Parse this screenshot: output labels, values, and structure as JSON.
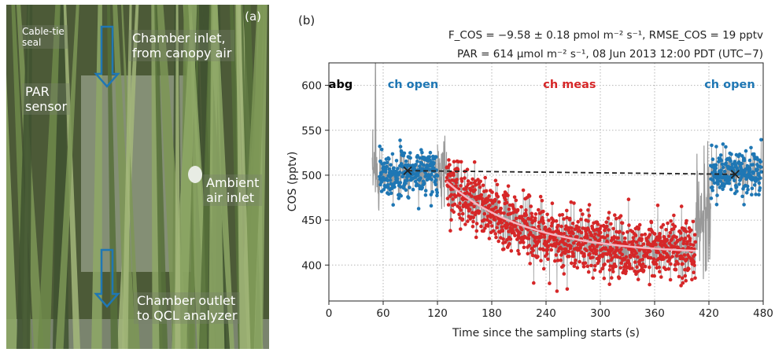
{
  "photo": {
    "panel_label": "(a)",
    "labels": {
      "cable_tie": [
        "Cable-tie",
        "seal"
      ],
      "inlet": [
        "Chamber inlet,",
        "from canopy air"
      ],
      "par": [
        "PAR",
        "sensor"
      ],
      "ambient": [
        "Ambient",
        "air inlet"
      ],
      "outlet": [
        "Chamber outlet",
        "to QCL analyzer"
      ]
    },
    "colors": {
      "arrow": "#1f77b4",
      "leaf_light": "#8ea866",
      "leaf_dark": "#2d3a22"
    }
  },
  "chart_data": {
    "panel_label": "(b)",
    "type": "scatter",
    "header_line1": "F_COS = −9.58 ± 0.18 pmol m⁻² s⁻¹,  RMSE_COS = 19 pptv",
    "header_line2": "PAR = 614 μmol m⁻² s⁻¹,  08 Jun 2013 12:00 PDT (UTC−7)",
    "xlabel": "Time since the sampling starts (s)",
    "ylabel": "COS (pptv)",
    "xlim": [
      0,
      480
    ],
    "ylim": [
      360,
      625
    ],
    "xticks": [
      0,
      60,
      120,
      180,
      240,
      300,
      360,
      420,
      480
    ],
    "yticks": [
      400,
      450,
      500,
      550,
      600
    ],
    "grid": true,
    "phase_labels": [
      {
        "text": "abg",
        "x": 13,
        "y": 597,
        "color": "#000000"
      },
      {
        "text": "ch open",
        "x": 93,
        "y": 597,
        "color": "#1f77b4"
      },
      {
        "text": "ch meas",
        "x": 266,
        "y": 597,
        "color": "#d62728"
      },
      {
        "text": "ch open",
        "x": 443,
        "y": 597,
        "color": "#1f77b4"
      }
    ],
    "colors": {
      "raw": "#999999",
      "open": "#1f77b4",
      "meas": "#d62728",
      "fit": "#f7b6c2",
      "baseline": "#222222"
    },
    "raw_trace": {
      "spike": [
        [
          51,
          500
        ],
        [
          51.5,
          625
        ],
        [
          52,
          495
        ]
      ],
      "segments": [
        [
          48,
          56,
          500,
          18
        ],
        [
          120,
          130,
          510,
          18
        ],
        [
          405,
          422,
          450,
          35
        ]
      ]
    },
    "open_1": {
      "x_range": [
        56,
        120
      ],
      "mean": 503,
      "sd": 13,
      "n": 260
    },
    "open_2": {
      "x_range": [
        422,
        478
      ],
      "mean": 502,
      "sd": 13,
      "n": 220
    },
    "meas": {
      "x_range": [
        130,
        405
      ],
      "c_end": 412,
      "c_start": 495,
      "tau": 80,
      "sd": 17,
      "n": 1100
    },
    "fit_curve": {
      "x_range": [
        130,
        405
      ],
      "c_end": 412,
      "c_start": 493,
      "tau": 90
    },
    "baseline": {
      "x": [
        87,
        449
      ],
      "y": [
        505,
        501
      ]
    }
  }
}
